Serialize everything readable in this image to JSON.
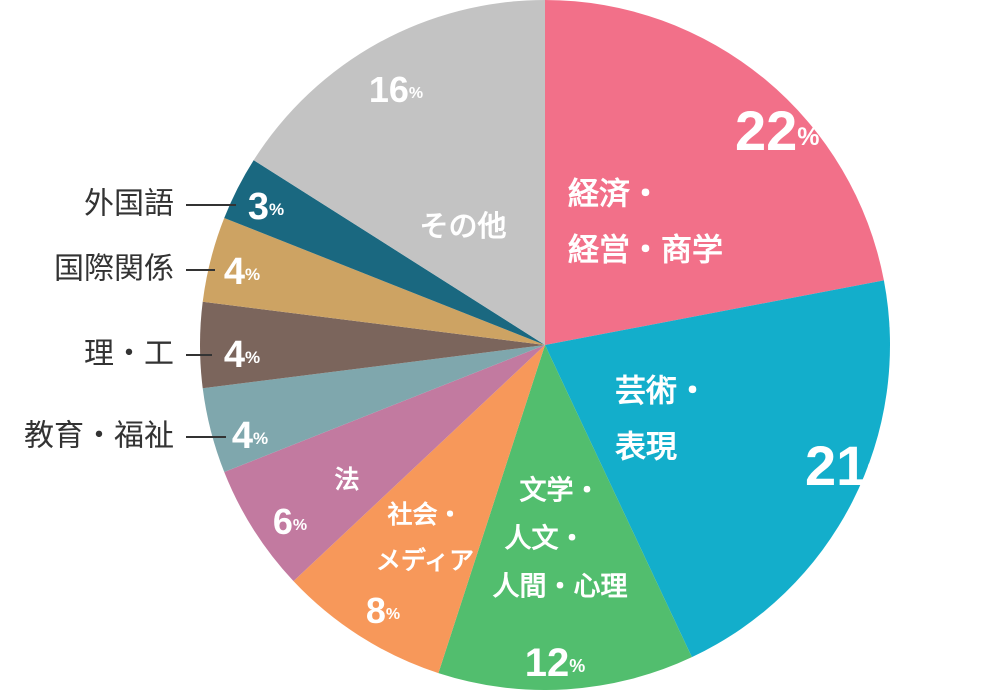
{
  "chart_data": {
    "type": "pie",
    "title": "",
    "slices": [
      {
        "label": "経済・経営・商学",
        "label_lines": [
          "経済・",
          "経営・商学"
        ],
        "value": 22,
        "value_label": "22",
        "unit": "%",
        "color": "#f27089",
        "label_position": "inside"
      },
      {
        "label": "芸術・表現",
        "label_lines": [
          "芸術・",
          "表現"
        ],
        "value": 21,
        "value_label": "21",
        "unit": "%",
        "color": "#13aecb",
        "label_position": "inside"
      },
      {
        "label": "文学・人文・人間・心理",
        "label_lines": [
          "文学・",
          "人文・",
          "人間・心理"
        ],
        "value": 12,
        "value_label": "12",
        "unit": "%",
        "color": "#52be6e",
        "label_position": "inside"
      },
      {
        "label": "社会・メディア",
        "label_lines": [
          "社会・",
          "メディア"
        ],
        "value": 8,
        "value_label": "8",
        "unit": "%",
        "color": "#f7985a",
        "label_position": "inside"
      },
      {
        "label": "法",
        "label_lines": [
          "法"
        ],
        "value": 6,
        "value_label": "6",
        "unit": "%",
        "color": "#c27aa0",
        "label_position": "inside"
      },
      {
        "label": "教育・福祉",
        "label_lines": [
          "教育・福祉"
        ],
        "value": 4,
        "value_label": "4",
        "unit": "%",
        "color": "#7fa7ad",
        "label_position": "outside-left"
      },
      {
        "label": "理・工",
        "label_lines": [
          "理・工"
        ],
        "value": 4,
        "value_label": "4",
        "unit": "%",
        "color": "#7b655c",
        "label_position": "outside-left"
      },
      {
        "label": "国際関係",
        "label_lines": [
          "国際関係"
        ],
        "value": 4,
        "value_label": "4",
        "unit": "%",
        "color": "#cda363",
        "label_position": "outside-left"
      },
      {
        "label": "外国語",
        "label_lines": [
          "外国語"
        ],
        "value": 3,
        "value_label": "3",
        "unit": "%",
        "color": "#1a6880",
        "label_position": "outside-left"
      },
      {
        "label": "その他",
        "label_lines": [
          "その他"
        ],
        "value": 16,
        "value_label": "16",
        "unit": "%",
        "color": "#c3c3c3",
        "label_position": "inside"
      }
    ],
    "start": "12 o'clock",
    "direction": "clockwise",
    "legend": "none"
  }
}
